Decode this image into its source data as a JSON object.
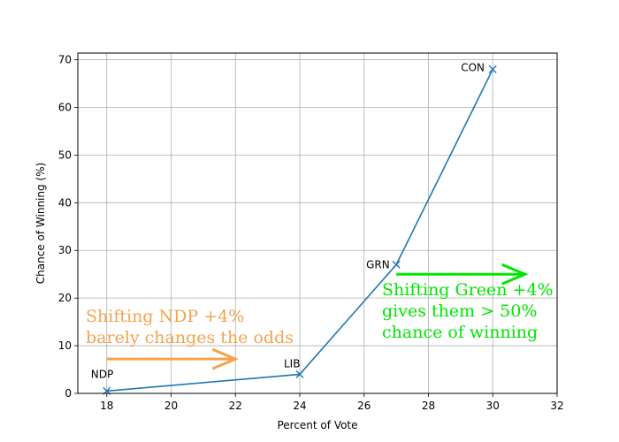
{
  "chart_data": {
    "type": "line",
    "title": "",
    "xlabel": "Percent of Vote",
    "ylabel": "Chance of Winning (%)",
    "xlim": [
      17.1,
      32
    ],
    "ylim": [
      0,
      71.4
    ],
    "xticks": [
      18,
      20,
      22,
      24,
      26,
      28,
      30,
      32
    ],
    "yticks": [
      0,
      10,
      20,
      30,
      40,
      50,
      60,
      70
    ],
    "grid": true,
    "line_color": "#1f77b4",
    "marker": "x",
    "points": [
      {
        "label": "NDP",
        "x": 18,
        "y": 0.5
      },
      {
        "label": "LIB",
        "x": 24,
        "y": 4
      },
      {
        "label": "GRN",
        "x": 27,
        "y": 27
      },
      {
        "label": "CON",
        "x": 30,
        "y": 68
      }
    ],
    "annotations": [
      {
        "lines": [
          "Shifting NDP +4%",
          "barely changes the odds"
        ],
        "color": "#f5a34d",
        "arrow_from": [
          18,
          7.2
        ],
        "arrow_to": [
          22,
          7.2
        ]
      },
      {
        "lines": [
          "Shifting Green +4%",
          "gives them > 50%",
          "chance of winning"
        ],
        "color": "#00e600",
        "arrow_from": [
          27,
          25
        ],
        "arrow_to": [
          31,
          25
        ]
      }
    ]
  }
}
